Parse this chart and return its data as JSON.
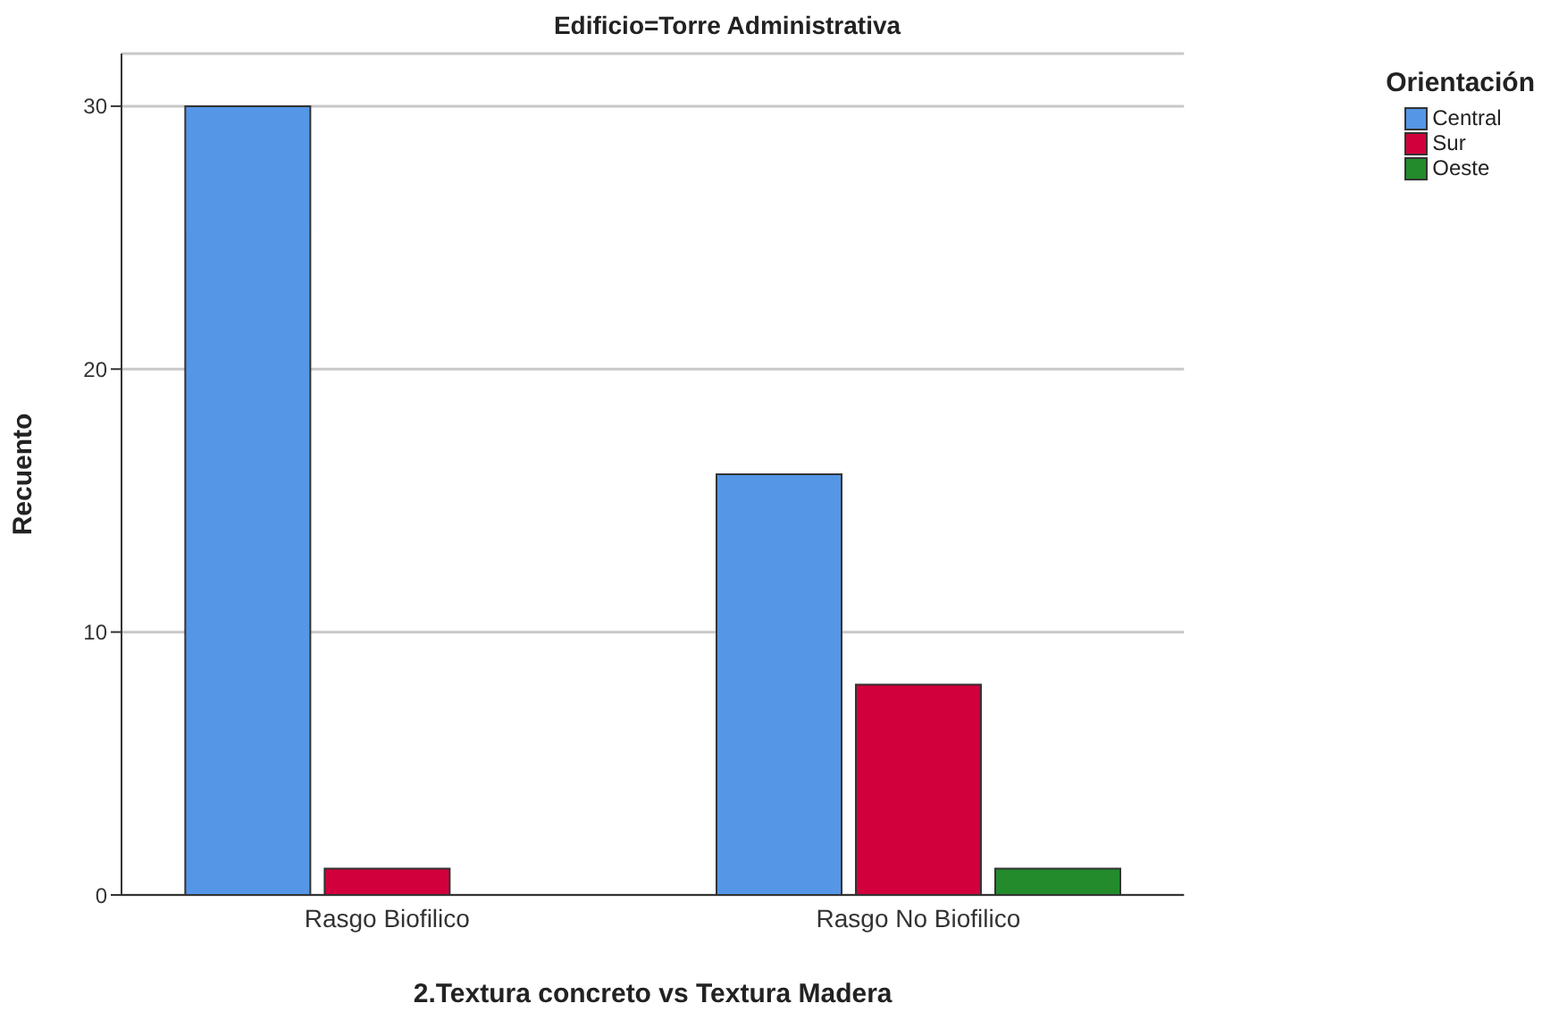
{
  "chart_data": {
    "type": "bar",
    "title": "Edificio=Torre Administrativa",
    "xlabel": "2.Textura concreto vs Textura Madera",
    "ylabel": "Recuento",
    "legend_title": "Orientación",
    "categories": [
      "Rasgo Biofilico",
      "Rasgo No Biofilico"
    ],
    "series": [
      {
        "name": "Central",
        "color": "#5596e6",
        "values": [
          30,
          16
        ]
      },
      {
        "name": "Sur",
        "color": "#d1003c",
        "values": [
          1,
          8
        ]
      },
      {
        "name": "Oeste",
        "color": "#238b2c",
        "values": [
          null,
          1
        ]
      }
    ],
    "ylim": [
      0,
      32
    ],
    "yticks": [
      0,
      10,
      20,
      30
    ],
    "grid": "y",
    "legend": "top right"
  }
}
